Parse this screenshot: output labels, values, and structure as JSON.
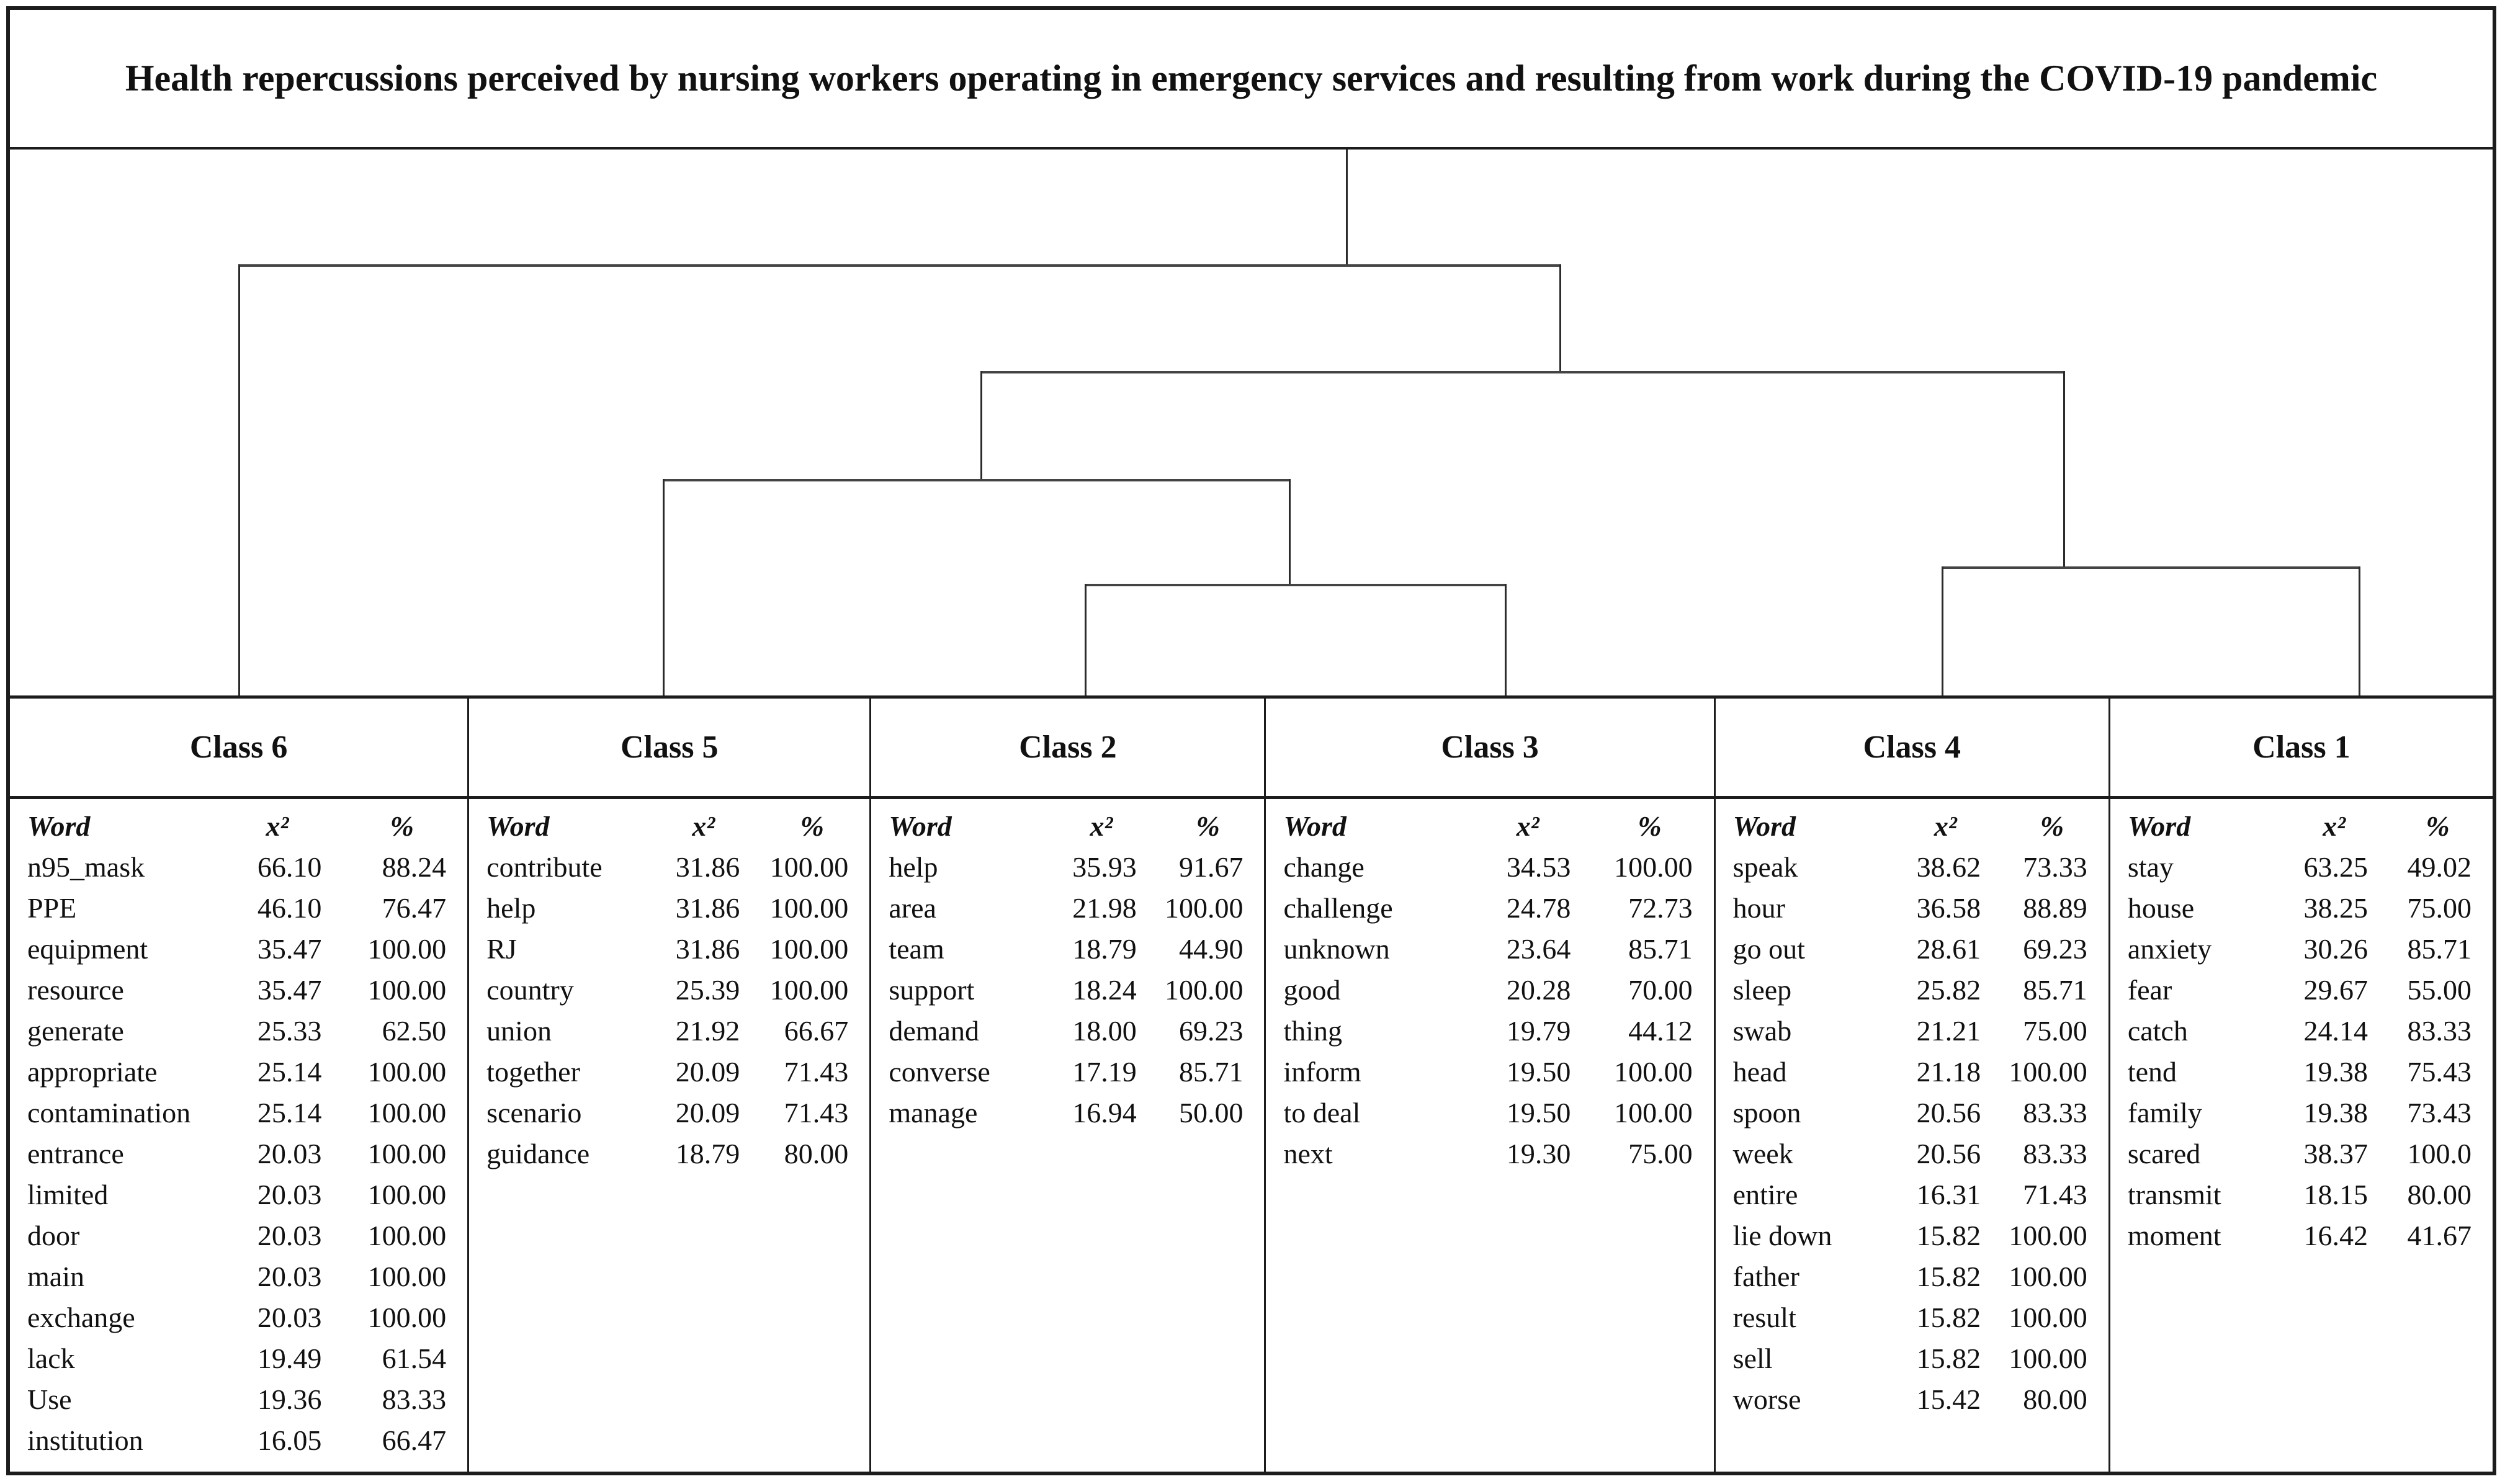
{
  "figure": {
    "title": "Health repercussions perceived by nursing workers operating in emergency services and resulting from work during the COVID-19 pandemic"
  },
  "chart_data": {
    "type": "table",
    "title": "Health repercussions perceived by nursing workers operating in emergency services and resulting from work during the COVID-19 pandemic",
    "description": "Descending hierarchical classification dendrogram with word classes; each class lists words with chi-square (x²) and percentage values",
    "dendrogram": {
      "leaf_order": [
        "Class 6",
        "Class 5",
        "Class 2",
        "Class 3",
        "Class 4",
        "Class 1"
      ],
      "hierarchy": [
        "Class 6",
        [
          [
            "Class 5",
            [
              "Class 2",
              "Class 3"
            ]
          ],
          [
            "Class 4",
            "Class 1"
          ]
        ]
      ]
    },
    "columns": [
      "Word",
      "x²",
      "%"
    ],
    "classes": [
      {
        "label": "Class 6",
        "rows": [
          [
            "n95_mask",
            "66.10",
            "88.24"
          ],
          [
            "PPE",
            "46.10",
            "76.47"
          ],
          [
            "equipment",
            "35.47",
            "100.00"
          ],
          [
            "resource",
            "35.47",
            "100.00"
          ],
          [
            "generate",
            "25.33",
            "62.50"
          ],
          [
            "appropriate",
            "25.14",
            "100.00"
          ],
          [
            "contamination",
            "25.14",
            "100.00"
          ],
          [
            "entrance",
            "20.03",
            "100.00"
          ],
          [
            "limited",
            "20.03",
            "100.00"
          ],
          [
            "door",
            "20.03",
            "100.00"
          ],
          [
            "main",
            "20.03",
            "100.00"
          ],
          [
            "exchange",
            "20.03",
            "100.00"
          ],
          [
            "lack",
            "19.49",
            "61.54"
          ],
          [
            "Use",
            "19.36",
            "83.33"
          ],
          [
            "institution",
            "16.05",
            "66.47"
          ]
        ]
      },
      {
        "label": "Class 5",
        "rows": [
          [
            "contribute",
            "31.86",
            "100.00"
          ],
          [
            "help",
            "31.86",
            "100.00"
          ],
          [
            "RJ",
            "31.86",
            "100.00"
          ],
          [
            "country",
            "25.39",
            "100.00"
          ],
          [
            "union",
            "21.92",
            "66.67"
          ],
          [
            "together",
            "20.09",
            "71.43"
          ],
          [
            "scenario",
            "20.09",
            "71.43"
          ],
          [
            "guidance",
            "18.79",
            "80.00"
          ]
        ]
      },
      {
        "label": "Class 2",
        "rows": [
          [
            "help",
            "35.93",
            "91.67"
          ],
          [
            "area",
            "21.98",
            "100.00"
          ],
          [
            "team",
            "18.79",
            "44.90"
          ],
          [
            "support",
            "18.24",
            "100.00"
          ],
          [
            "demand",
            "18.00",
            "69.23"
          ],
          [
            "converse",
            "17.19",
            "85.71"
          ],
          [
            "manage",
            "16.94",
            "50.00"
          ]
        ]
      },
      {
        "label": "Class 3",
        "rows": [
          [
            "change",
            "34.53",
            "100.00"
          ],
          [
            "challenge",
            "24.78",
            "72.73"
          ],
          [
            "unknown",
            "23.64",
            "85.71"
          ],
          [
            "good",
            "20.28",
            "70.00"
          ],
          [
            "thing",
            "19.79",
            "44.12"
          ],
          [
            "inform",
            "19.50",
            "100.00"
          ],
          [
            "to deal",
            "19.50",
            "100.00"
          ],
          [
            "next",
            "19.30",
            "75.00"
          ]
        ]
      },
      {
        "label": "Class 4",
        "rows": [
          [
            "speak",
            "38.62",
            "73.33"
          ],
          [
            "hour",
            "36.58",
            "88.89"
          ],
          [
            "go out",
            "28.61",
            "69.23"
          ],
          [
            "sleep",
            "25.82",
            "85.71"
          ],
          [
            "swab",
            "21.21",
            "75.00"
          ],
          [
            "head",
            "21.18",
            "100.00"
          ],
          [
            "spoon",
            "20.56",
            "83.33"
          ],
          [
            "week",
            "20.56",
            "83.33"
          ],
          [
            "entire",
            "16.31",
            "71.43"
          ],
          [
            "lie down",
            "15.82",
            "100.00"
          ],
          [
            "father",
            "15.82",
            "100.00"
          ],
          [
            "result",
            "15.82",
            "100.00"
          ],
          [
            "sell",
            "15.82",
            "100.00"
          ],
          [
            "worse",
            "15.42",
            "80.00"
          ]
        ]
      },
      {
        "label": "Class 1",
        "rows": [
          [
            "stay",
            "63.25",
            "49.02"
          ],
          [
            "house",
            "38.25",
            "75.00"
          ],
          [
            "anxiety",
            "30.26",
            "85.71"
          ],
          [
            "fear",
            "29.67",
            "55.00"
          ],
          [
            "catch",
            "24.14",
            "83.33"
          ],
          [
            "tend",
            "19.38",
            "75.43"
          ],
          [
            "family",
            "19.38",
            "73.43"
          ],
          [
            "scared",
            "38.37",
            "100.0"
          ],
          [
            "transmit",
            "18.15",
            "80.00"
          ],
          [
            "moment",
            "16.42",
            "41.67"
          ]
        ]
      }
    ]
  }
}
